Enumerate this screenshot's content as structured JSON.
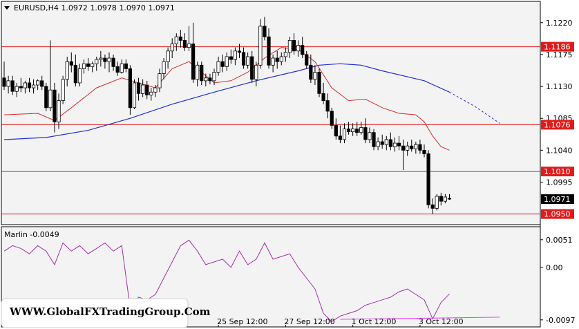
{
  "header": {
    "symbol_line": "EURUSD,H4  1.0972 1.0978 1.0970 1.0971"
  },
  "indicator": {
    "label": "Marlin -0.0049"
  },
  "watermark": "WWW.GlobalFXTradingGroup.Com",
  "colors": {
    "background": "#ffffff",
    "plot_bg": "#f3f3f3",
    "bull": "#ffffff",
    "bear": "#000000",
    "ma_blue": "#1f2fd6",
    "ma_red": "#d42a2a",
    "level_line": "#e01b1b",
    "oscillator": "#a030a8",
    "signal": "#e040f0"
  },
  "chart_data": [
    {
      "type": "candlestick",
      "symbol": "EURUSD",
      "timeframe": "H4",
      "ohlc_current": {
        "open": 1.0972,
        "high": 1.0978,
        "low": 1.097,
        "close": 1.0971
      },
      "y_ticks": [
        1.122,
        1.1175,
        1.113,
        1.1085,
        1.104,
        1.0995
      ],
      "ylim": [
        1.0935,
        1.125
      ],
      "x_tick_labels": [
        {
          "label": "25 Sep 12:00",
          "index": 51
        },
        {
          "label": "27 Sep 12:00",
          "index": 67
        },
        {
          "label": "1 Oct 12:00",
          "index": 83
        },
        {
          "label": "3 Oct 12:00",
          "index": 99
        }
      ],
      "horizontal_levels": [
        {
          "price": 1.1186,
          "label": "1.1186"
        },
        {
          "price": 1.1076,
          "label": "1.1076"
        },
        {
          "price": 1.101,
          "label": "1.1010"
        },
        {
          "price": 1.095,
          "label": "1.0950"
        }
      ],
      "current_price": {
        "price": 1.0971,
        "label": "1.0971"
      },
      "candles": [
        [
          1.1142,
          1.1165,
          1.1125,
          1.113
        ],
        [
          1.113,
          1.1145,
          1.112,
          1.1138
        ],
        [
          1.1138,
          1.1145,
          1.1118,
          1.1123
        ],
        [
          1.1123,
          1.1135,
          1.1115,
          1.113
        ],
        [
          1.113,
          1.1142,
          1.1122,
          1.1128
        ],
        [
          1.1128,
          1.1138,
          1.112,
          1.1135
        ],
        [
          1.1135,
          1.1142,
          1.1122,
          1.1128
        ],
        [
          1.1128,
          1.114,
          1.112,
          1.1132
        ],
        [
          1.1132,
          1.114,
          1.1125,
          1.1138
        ],
        [
          1.1138,
          1.1145,
          1.1125,
          1.113
        ],
        [
          1.113,
          1.1135,
          1.1095,
          1.11
        ],
        [
          1.11,
          1.1195,
          1.1095,
          1.1125
        ],
        [
          1.1125,
          1.1135,
          1.1065,
          1.108
        ],
        [
          1.108,
          1.112,
          1.107,
          1.111
        ],
        [
          1.111,
          1.1145,
          1.1105,
          1.114
        ],
        [
          1.114,
          1.1172,
          1.113,
          1.1165
        ],
        [
          1.1165,
          1.1178,
          1.115,
          1.116
        ],
        [
          1.116,
          1.1175,
          1.113,
          1.1135
        ],
        [
          1.1135,
          1.1162,
          1.113,
          1.1155
        ],
        [
          1.1155,
          1.1168,
          1.1148,
          1.1162
        ],
        [
          1.1162,
          1.117,
          1.1152,
          1.1158
        ],
        [
          1.1158,
          1.1165,
          1.115,
          1.1162
        ],
        [
          1.1162,
          1.1172,
          1.1152,
          1.1168
        ],
        [
          1.1168,
          1.118,
          1.1158,
          1.117
        ],
        [
          1.117,
          1.1175,
          1.1155,
          1.1165
        ],
        [
          1.1165,
          1.1178,
          1.115,
          1.117
        ],
        [
          1.117,
          1.1175,
          1.1152,
          1.1158
        ],
        [
          1.1158,
          1.1165,
          1.1145,
          1.115
        ],
        [
          1.115,
          1.1168,
          1.1148,
          1.1162
        ],
        [
          1.1162,
          1.1168,
          1.115,
          1.1155
        ],
        [
          1.1155,
          1.116,
          1.109,
          1.11
        ],
        [
          1.11,
          1.114,
          1.1098,
          1.1135
        ],
        [
          1.1135,
          1.1142,
          1.111,
          1.112
        ],
        [
          1.112,
          1.114,
          1.1115,
          1.1132
        ],
        [
          1.1132,
          1.1138,
          1.1112,
          1.1118
        ],
        [
          1.1118,
          1.1128,
          1.111,
          1.1122
        ],
        [
          1.1122,
          1.1132,
          1.1115,
          1.1128
        ],
        [
          1.1128,
          1.1155,
          1.1122,
          1.1148
        ],
        [
          1.1148,
          1.117,
          1.114,
          1.1165
        ],
        [
          1.1165,
          1.1185,
          1.1155,
          1.118
        ],
        [
          1.118,
          1.1198,
          1.117,
          1.119
        ],
        [
          1.119,
          1.1205,
          1.118,
          1.12
        ],
        [
          1.12,
          1.121,
          1.1185,
          1.1195
        ],
        [
          1.1195,
          1.1205,
          1.118,
          1.1185
        ],
        [
          1.1185,
          1.1215,
          1.118,
          1.119
        ],
        [
          1.119,
          1.122,
          1.1135,
          1.114
        ],
        [
          1.114,
          1.1165,
          1.113,
          1.116
        ],
        [
          1.116,
          1.1165,
          1.1132,
          1.1138
        ],
        [
          1.1138,
          1.1148,
          1.113,
          1.1142
        ],
        [
          1.1142,
          1.1148,
          1.1133,
          1.1138
        ],
        [
          1.1138,
          1.1155,
          1.1132,
          1.115
        ],
        [
          1.115,
          1.1172,
          1.1145,
          1.1165
        ],
        [
          1.1165,
          1.1175,
          1.115,
          1.1158
        ],
        [
          1.1158,
          1.1178,
          1.1152,
          1.1172
        ],
        [
          1.1172,
          1.1182,
          1.1162,
          1.1168
        ],
        [
          1.1168,
          1.1185,
          1.116,
          1.118
        ],
        [
          1.118,
          1.119,
          1.117,
          1.1178
        ],
        [
          1.1178,
          1.1185,
          1.1155,
          1.116
        ],
        [
          1.116,
          1.1178,
          1.1155,
          1.1172
        ],
        [
          1.1172,
          1.118,
          1.1135,
          1.114
        ],
        [
          1.114,
          1.1165,
          1.113,
          1.116
        ],
        [
          1.116,
          1.1225,
          1.1155,
          1.1215
        ],
        [
          1.1215,
          1.1228,
          1.1195,
          1.12
        ],
        [
          1.12,
          1.1212,
          1.1155,
          1.116
        ],
        [
          1.116,
          1.1175,
          1.115,
          1.117
        ],
        [
          1.117,
          1.118,
          1.1155,
          1.1165
        ],
        [
          1.1165,
          1.1178,
          1.116,
          1.1172
        ],
        [
          1.1172,
          1.1185,
          1.1165,
          1.1178
        ],
        [
          1.1178,
          1.12,
          1.117,
          1.1195
        ],
        [
          1.1195,
          1.1205,
          1.1175,
          1.118
        ],
        [
          1.118,
          1.1195,
          1.1172,
          1.1188
        ],
        [
          1.1188,
          1.12,
          1.117,
          1.1175
        ],
        [
          1.1175,
          1.118,
          1.1155,
          1.116
        ],
        [
          1.116,
          1.1175,
          1.1135,
          1.114
        ],
        [
          1.114,
          1.116,
          1.1132,
          1.115
        ],
        [
          1.115,
          1.1155,
          1.1115,
          1.112
        ],
        [
          1.112,
          1.1135,
          1.1105,
          1.111
        ],
        [
          1.111,
          1.112,
          1.1085,
          1.1095
        ],
        [
          1.1095,
          1.11,
          1.107,
          1.1075
        ],
        [
          1.1075,
          1.1085,
          1.1055,
          1.106
        ],
        [
          1.106,
          1.1075,
          1.105,
          1.1055
        ],
        [
          1.1055,
          1.1078,
          1.105,
          1.107
        ],
        [
          1.107,
          1.108,
          1.1062,
          1.1066
        ],
        [
          1.1066,
          1.1078,
          1.106,
          1.107
        ],
        [
          1.107,
          1.108,
          1.106,
          1.1065
        ],
        [
          1.1065,
          1.108,
          1.1062,
          1.1072
        ],
        [
          1.1072,
          1.1085,
          1.105,
          1.1055
        ],
        [
          1.1055,
          1.1072,
          1.105,
          1.1065
        ],
        [
          1.1065,
          1.107,
          1.104,
          1.1045
        ],
        [
          1.1045,
          1.1058,
          1.104,
          1.1052
        ],
        [
          1.1052,
          1.1062,
          1.1042,
          1.1048
        ],
        [
          1.1048,
          1.106,
          1.104,
          1.1055
        ],
        [
          1.1055,
          1.1065,
          1.104,
          1.1045
        ],
        [
          1.1045,
          1.1058,
          1.1038,
          1.105
        ],
        [
          1.105,
          1.106,
          1.104,
          1.1046
        ],
        [
          1.1046,
          1.1055,
          1.1012,
          1.104
        ],
        [
          1.104,
          1.1052,
          1.1032,
          1.1046
        ],
        [
          1.1046,
          1.1055,
          1.1038,
          1.1042
        ],
        [
          1.1042,
          1.1052,
          1.1035,
          1.1048
        ],
        [
          1.1048,
          1.1055,
          1.1035,
          1.104
        ],
        [
          1.104,
          1.1048,
          1.103,
          1.1035
        ],
        [
          1.1035,
          1.104,
          1.0958,
          1.0963
        ],
        [
          1.0963,
          1.0972,
          1.095,
          1.0958
        ],
        [
          1.0958,
          1.0978,
          1.0955,
          1.0975
        ],
        [
          1.0975,
          1.098,
          1.0962,
          1.0968
        ],
        [
          1.0968,
          1.0978,
          1.0965,
          1.0974
        ],
        [
          1.0972,
          1.0978,
          1.097,
          1.0971
        ]
      ],
      "ma_blue": [
        [
          0,
          1.1055
        ],
        [
          10,
          1.1058
        ],
        [
          20,
          1.1068
        ],
        [
          30,
          1.1085
        ],
        [
          40,
          1.1105
        ],
        [
          50,
          1.1122
        ],
        [
          60,
          1.1138
        ],
        [
          70,
          1.1152
        ],
        [
          75,
          1.116
        ],
        [
          80,
          1.1162
        ],
        [
          85,
          1.116
        ],
        [
          90,
          1.1152
        ],
        [
          100,
          1.1138
        ],
        [
          106,
          1.1122
        ],
        [
          112,
          1.1102
        ],
        [
          118,
          1.1078
        ]
      ],
      "ma_red": [
        [
          0,
          1.109
        ],
        [
          8,
          1.1092
        ],
        [
          12,
          1.1082
        ],
        [
          16,
          1.11
        ],
        [
          22,
          1.1128
        ],
        [
          28,
          1.1142
        ],
        [
          32,
          1.1135
        ],
        [
          36,
          1.1128
        ],
        [
          40,
          1.1155
        ],
        [
          44,
          1.1165
        ],
        [
          47,
          1.115
        ],
        [
          50,
          1.1135
        ],
        [
          54,
          1.1138
        ],
        [
          58,
          1.115
        ],
        [
          62,
          1.117
        ],
        [
          66,
          1.1185
        ],
        [
          70,
          1.1182
        ],
        [
          74,
          1.1165
        ],
        [
          78,
          1.1128
        ],
        [
          82,
          1.111
        ],
        [
          86,
          1.1112
        ],
        [
          90,
          1.11
        ],
        [
          94,
          1.1092
        ],
        [
          98,
          1.109
        ],
        [
          100,
          1.108
        ],
        [
          102,
          1.106
        ],
        [
          104,
          1.1045
        ],
        [
          106,
          1.104
        ]
      ]
    },
    {
      "type": "line",
      "name": "Marlin",
      "current_value": -0.0049,
      "y_ticks": [
        0.0051,
        0.0,
        -0.0097
      ],
      "ylim": [
        -0.011,
        0.0075
      ],
      "values": [
        [
          0,
          0.003
        ],
        [
          2,
          0.004
        ],
        [
          4,
          0.0035
        ],
        [
          6,
          0.0025
        ],
        [
          8,
          0.004
        ],
        [
          10,
          0.003
        ],
        [
          12,
          0.0005
        ],
        [
          14,
          0.0045
        ],
        [
          16,
          0.003
        ],
        [
          18,
          0.004
        ],
        [
          20,
          0.0025
        ],
        [
          22,
          0.0035
        ],
        [
          24,
          0.0045
        ],
        [
          26,
          0.003
        ],
        [
          28,
          0.004
        ],
        [
          30,
          -0.0075
        ],
        [
          32,
          -0.0055
        ],
        [
          34,
          -0.006
        ],
        [
          36,
          -0.005
        ],
        [
          38,
          -0.002
        ],
        [
          40,
          0.001
        ],
        [
          42,
          0.004
        ],
        [
          44,
          0.005
        ],
        [
          46,
          0.003
        ],
        [
          48,
          0.0005
        ],
        [
          50,
          0.001
        ],
        [
          52,
          0.0015
        ],
        [
          54,
          0.0
        ],
        [
          56,
          0.003
        ],
        [
          58,
          0.0005
        ],
        [
          60,
          0.0015
        ],
        [
          62,
          0.0045
        ],
        [
          64,
          0.0015
        ],
        [
          66,
          0.002
        ],
        [
          68,
          0.0025
        ],
        [
          70,
          0.0
        ],
        [
          72,
          -0.002
        ],
        [
          74,
          -0.004
        ],
        [
          76,
          -0.0085
        ],
        [
          78,
          -0.01
        ],
        [
          80,
          -0.009
        ],
        [
          82,
          -0.0085
        ],
        [
          84,
          -0.008
        ],
        [
          86,
          -0.007
        ],
        [
          88,
          -0.0065
        ],
        [
          90,
          -0.006
        ],
        [
          92,
          -0.0055
        ],
        [
          94,
          -0.0045
        ],
        [
          96,
          -0.004
        ],
        [
          98,
          -0.005
        ],
        [
          100,
          -0.006
        ],
        [
          102,
          -0.0095
        ],
        [
          104,
          -0.0065
        ],
        [
          106,
          -0.0049
        ]
      ],
      "signal_line": [
        [
          80,
          -0.0096
        ],
        [
          118,
          -0.0092
        ]
      ]
    }
  ]
}
